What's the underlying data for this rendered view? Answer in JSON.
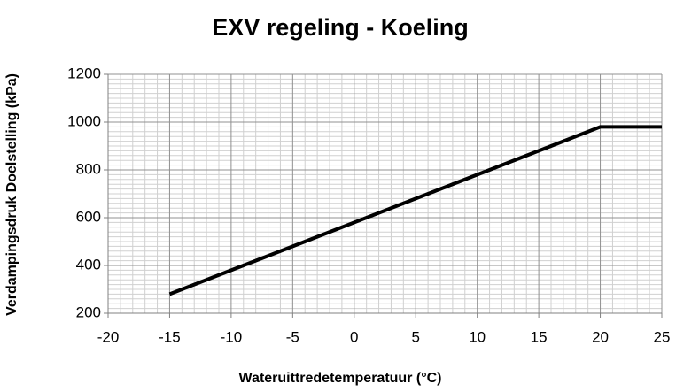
{
  "chart_data": {
    "type": "line",
    "title": "EXV regeling - Koeling",
    "x_label": "Wateruittredetemperatuur (°C)",
    "y_label": "Verdampingsdruk Doelstelling (kPa)",
    "series": [
      {
        "name": "Verdampingsdruk Doelstelling",
        "color": "#000000",
        "x": [
          -15,
          20,
          25
        ],
        "values": [
          280,
          980,
          980
        ]
      }
    ],
    "xlim": [
      -20,
      25
    ],
    "xticks": [
      -20,
      -15,
      -10,
      -5,
      0,
      5,
      10,
      15,
      20,
      25
    ],
    "ylim": [
      200,
      1200
    ],
    "yticks": [
      200,
      400,
      600,
      800,
      1000,
      1200
    ],
    "grid": true,
    "minor_grid": true
  }
}
